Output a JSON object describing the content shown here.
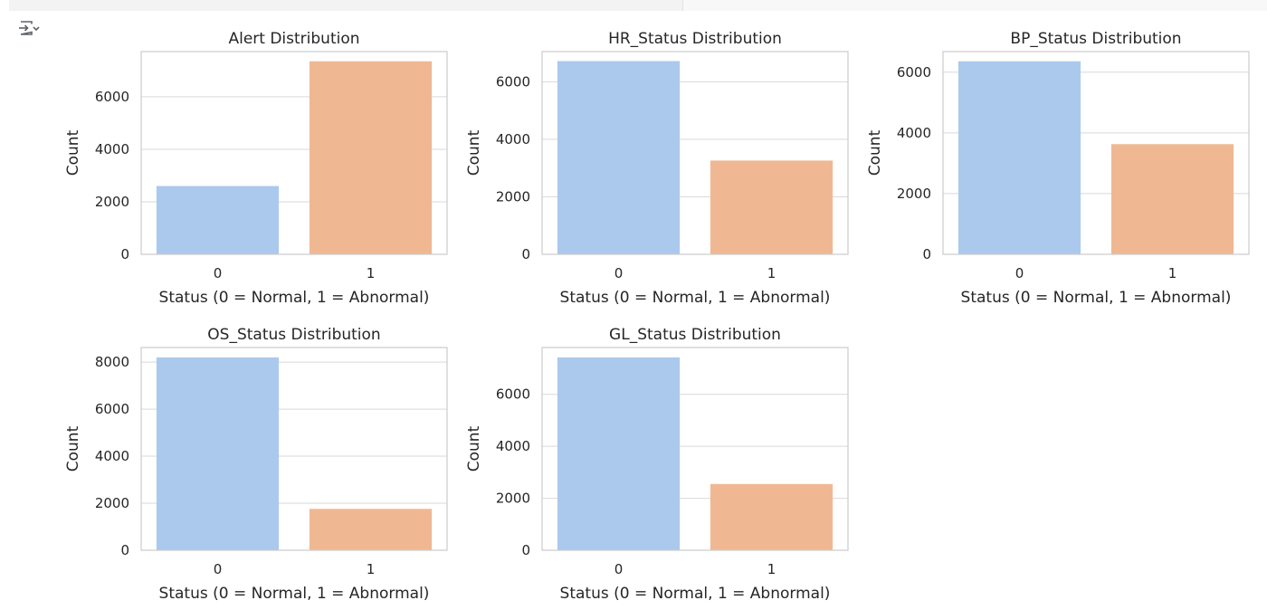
{
  "cell": {
    "output_icon": "collapse-output-icon"
  },
  "colors": {
    "bar_normal": "#abc9ec",
    "bar_abnormal": "#f0b892",
    "axis_frame": "#cccccc",
    "grid": "#d9d9d9",
    "text": "#262626"
  },
  "chart_data": [
    {
      "type": "bar",
      "title": "Alert Distribution",
      "xlabel": "Status (0 = Normal, 1 = Abnormal)",
      "ylabel": "Count",
      "categories": [
        "0",
        "1"
      ],
      "values": [
        2600,
        7350
      ],
      "ylim": [
        0,
        7720
      ],
      "yticks": [
        0,
        2000,
        4000,
        6000
      ],
      "grid": true,
      "legend": "none"
    },
    {
      "type": "bar",
      "title": "HR_Status Distribution",
      "xlabel": "Status (0 = Normal, 1 = Abnormal)",
      "ylabel": "Count",
      "categories": [
        "0",
        "1"
      ],
      "values": [
        6720,
        3260
      ],
      "ylim": [
        0,
        7050
      ],
      "yticks": [
        0,
        2000,
        4000,
        6000
      ],
      "grid": true,
      "legend": "none"
    },
    {
      "type": "bar",
      "title": "BP_Status Distribution",
      "xlabel": "Status (0 = Normal, 1 = Abnormal)",
      "ylabel": "Count",
      "categories": [
        "0",
        "1"
      ],
      "values": [
        6360,
        3630
      ],
      "ylim": [
        0,
        6680
      ],
      "yticks": [
        0,
        2000,
        4000,
        6000
      ],
      "grid": true,
      "legend": "none"
    },
    {
      "type": "bar",
      "title": "OS_Status Distribution",
      "xlabel": "Status (0 = Normal, 1 = Abnormal)",
      "ylabel": "Count",
      "categories": [
        "0",
        "1"
      ],
      "values": [
        8200,
        1760
      ],
      "ylim": [
        0,
        8620
      ],
      "yticks": [
        0,
        2000,
        4000,
        6000,
        8000
      ],
      "grid": true,
      "legend": "none"
    },
    {
      "type": "bar",
      "title": "GL_Status Distribution",
      "xlabel": "Status (0 = Normal, 1 = Abnormal)",
      "ylabel": "Count",
      "categories": [
        "0",
        "1"
      ],
      "values": [
        7420,
        2550
      ],
      "ylim": [
        0,
        7800
      ],
      "yticks": [
        0,
        2000,
        4000,
        6000
      ],
      "grid": true,
      "legend": "none"
    }
  ]
}
